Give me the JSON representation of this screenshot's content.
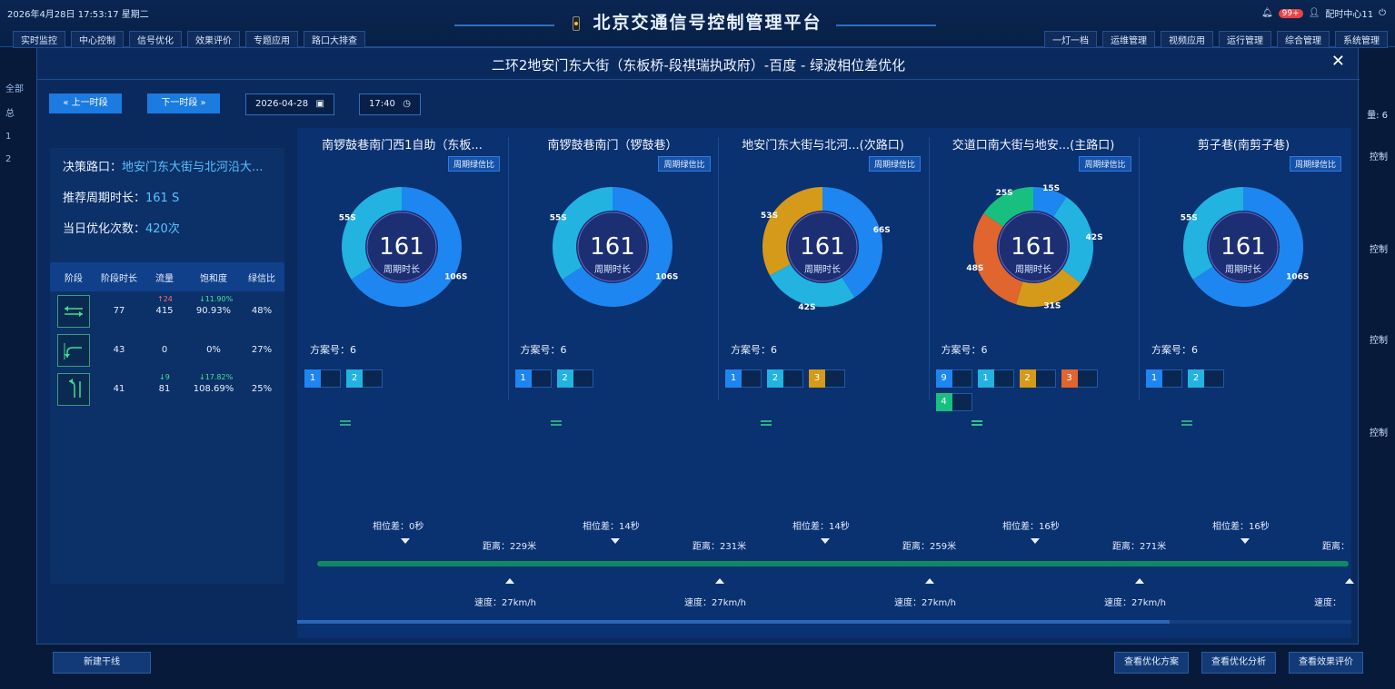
{
  "header": {
    "datetime": "2026年4月28日 17:53:17 星期二",
    "app_title": "北京交通信号控制管理平台",
    "notif_count": "99+",
    "user": "配时中心11",
    "nav_left": [
      "实时监控",
      "中心控制",
      "信号优化",
      "效果评价",
      "专题应用",
      "路口大排查"
    ],
    "nav_right": [
      "一灯一档",
      "运维管理",
      "视频应用",
      "运行管理",
      "综合管理",
      "系统管理"
    ]
  },
  "background": {
    "left_labels": [
      "全部",
      "总",
      "1",
      "2"
    ],
    "right_labels": [
      "控制",
      "控制",
      "控制",
      "控制"
    ],
    "right_count": "量: 6"
  },
  "modal": {
    "title": "二环2地安门东大街（东板桥-段祺瑞执政府）-百度 - 绿波相位差优化",
    "prev_label": "« 上一时段",
    "next_label": "下一时段 »",
    "date": "2026-04-28",
    "time": "17:40",
    "decision_label": "决策路口：",
    "decision_value": "地安门东大街与北河沿大...",
    "cycle_label": "推荐周期时长：",
    "cycle_value": "161 S",
    "opt_label": "当日优化次数：",
    "opt_value": "420次",
    "table": {
      "headers": [
        "阶段",
        "阶段时长",
        "流量",
        "饱和度",
        "绿信比"
      ],
      "rows": [
        {
          "duration": "77",
          "flow": "415",
          "sat": "90.93%",
          "green": "48%",
          "flow_trend": "↑24",
          "sat_trend": "↓11.90%"
        },
        {
          "duration": "43",
          "flow": "0",
          "sat": "0%",
          "green": "27%",
          "flow_trend": "",
          "sat_trend": ""
        },
        {
          "duration": "41",
          "flow": "81",
          "sat": "108.69%",
          "green": "25%",
          "flow_trend": "↓9",
          "sat_trend": "↓17.82%"
        }
      ]
    },
    "cards": [
      {
        "name": "南锣鼓巷南门西1自助（东板...",
        "split_btn": "周期绿信比",
        "cycle": "161",
        "cycle_label": "周期时长",
        "plan": "方案号：6",
        "segments": [
          {
            "value": 106,
            "label": "106S",
            "color": "#1e86f0"
          },
          {
            "value": 55,
            "label": "55S",
            "color": "#22b3e0"
          }
        ],
        "phases": [
          {
            "num": "1",
            "color": "#1e86f0"
          },
          {
            "num": "2",
            "color": "#22b3e0"
          }
        ]
      },
      {
        "name": "南锣鼓巷南门（锣鼓巷）",
        "split_btn": "周期绿信比",
        "cycle": "161",
        "cycle_label": "周期时长",
        "plan": "方案号：6",
        "segments": [
          {
            "value": 106,
            "label": "106S",
            "color": "#1e86f0"
          },
          {
            "value": 55,
            "label": "55S",
            "color": "#22b3e0"
          }
        ],
        "phases": [
          {
            "num": "1",
            "color": "#1e86f0"
          },
          {
            "num": "2",
            "color": "#22b3e0"
          }
        ]
      },
      {
        "name": "地安门东大街与北河...(次路口)",
        "split_btn": "周期绿信比",
        "cycle": "161",
        "cycle_label": "周期时长",
        "plan": "方案号：6",
        "segments": [
          {
            "value": 66,
            "label": "66S",
            "color": "#1e86f0"
          },
          {
            "value": 42,
            "label": "42S",
            "color": "#22b3e0"
          },
          {
            "value": 53,
            "label": "53S",
            "color": "#d59a1a"
          }
        ],
        "phases": [
          {
            "num": "1",
            "color": "#1e86f0"
          },
          {
            "num": "2",
            "color": "#22b3e0"
          },
          {
            "num": "3",
            "color": "#d59a1a"
          }
        ]
      },
      {
        "name": "交道口南大街与地安...(主路口)",
        "split_btn": "周期绿信比",
        "cycle": "161",
        "cycle_label": "周期时长",
        "plan": "方案号：6",
        "segments": [
          {
            "value": 15,
            "label": "15S",
            "color": "#1e86f0"
          },
          {
            "value": 42,
            "label": "42S",
            "color": "#22b3e0"
          },
          {
            "value": 31,
            "label": "31S",
            "color": "#d59a1a"
          },
          {
            "value": 48,
            "label": "48S",
            "color": "#e0652f"
          },
          {
            "value": 25,
            "label": "25S",
            "color": "#17c07f"
          }
        ],
        "phases": [
          {
            "num": "9",
            "color": "#1e86f0"
          },
          {
            "num": "1",
            "color": "#22b3e0"
          },
          {
            "num": "2",
            "color": "#d59a1a"
          },
          {
            "num": "3",
            "color": "#e0652f"
          },
          {
            "num": "4",
            "color": "#17c07f"
          }
        ]
      },
      {
        "name": "剪子巷(南剪子巷)",
        "split_btn": "周期绿信比",
        "cycle": "161",
        "cycle_label": "周期时长",
        "plan": "方案号：6",
        "segments": [
          {
            "value": 106,
            "label": "106S",
            "color": "#1e86f0"
          },
          {
            "value": 55,
            "label": "55S",
            "color": "#22b3e0"
          }
        ],
        "phases": [
          {
            "num": "1",
            "color": "#1e86f0"
          },
          {
            "num": "2",
            "color": "#22b3e0"
          }
        ]
      }
    ],
    "offsets": [
      "相位差：0秒",
      "相位差：14秒",
      "相位差：14秒",
      "相位差：16秒",
      "相位差：16秒"
    ],
    "distances": [
      "距离：229米",
      "距离：231米",
      "距离：259米",
      "距离：271米",
      "距离："
    ],
    "speeds": [
      "速度：27km/h",
      "速度：27km/h",
      "速度：27km/h",
      "速度：27km/h",
      "速度："
    ]
  },
  "footer": {
    "new_line": "新建干线",
    "btn1": "查看优化方案",
    "btn2": "查看优化分析",
    "btn3": "查看效果评价"
  }
}
